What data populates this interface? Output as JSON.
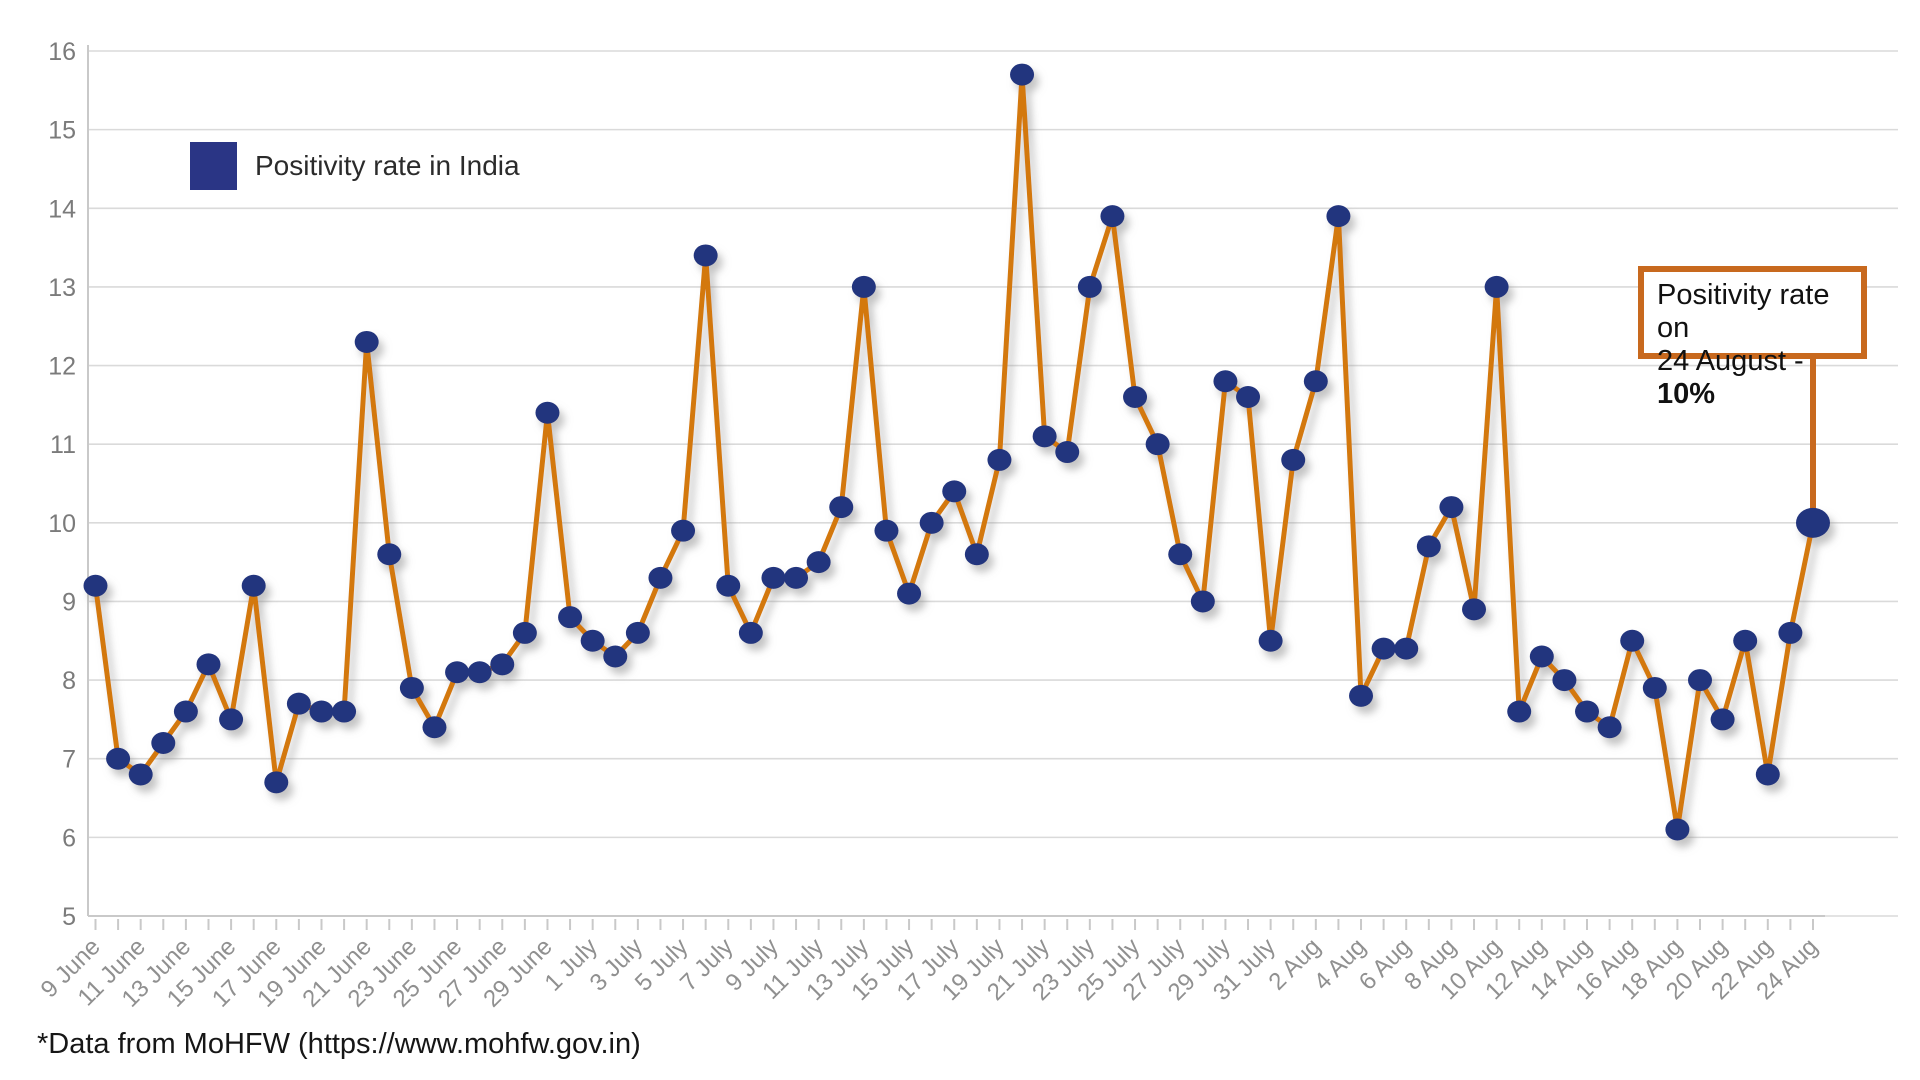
{
  "legend": {
    "label": "Positivity rate in India",
    "swatch_color": "#2A3585"
  },
  "annotation": {
    "line1": "Positivity rate on",
    "line2_prefix": "24 August - ",
    "line2_value": "10%"
  },
  "footer": {
    "note": "*Data from MoHFW (https://www.mohfw.gov.in)"
  },
  "chart_data": {
    "type": "line",
    "title": "",
    "xlabel": "",
    "ylabel": "",
    "ylim": [
      5,
      16
    ],
    "y_ticks": [
      5,
      6,
      7,
      8,
      9,
      10,
      11,
      12,
      13,
      14,
      15,
      16
    ],
    "grid": "horizontal",
    "legend_position": "top-left",
    "line_color": "#D3780E",
    "marker_color": "#24357E",
    "annotation_border_color": "#C8691E",
    "series_name": "Positivity rate in India",
    "x": [
      "9 June",
      "10 June",
      "11 June",
      "12 June",
      "13 June",
      "14 June",
      "15 June",
      "16 June",
      "17 June",
      "18 June",
      "19 June",
      "20 June",
      "21 June",
      "22 June",
      "23 June",
      "24 June",
      "25 June",
      "26 June",
      "27 June",
      "28 June",
      "29 June",
      "30 June",
      "1 July",
      "2 July",
      "3 July",
      "4 July",
      "5 July",
      "6 July",
      "7 July",
      "8 July",
      "9 July",
      "10 July",
      "11 July",
      "12 July",
      "13 July",
      "14 July",
      "15 July",
      "16 July",
      "17 July",
      "18 July",
      "19 July",
      "20 July",
      "21 July",
      "22 July",
      "23 July",
      "24 July",
      "25 July",
      "26 July",
      "27 July",
      "28 July",
      "29 July",
      "30 July",
      "31 July",
      "1 Aug",
      "2 Aug",
      "3 Aug",
      "4 Aug",
      "5 Aug",
      "6 Aug",
      "7 Aug",
      "8 Aug",
      "9 Aug",
      "10 Aug",
      "11 Aug",
      "12 Aug",
      "13 Aug",
      "14 Aug",
      "15 Aug",
      "16 Aug",
      "17 Aug",
      "18 Aug",
      "19 Aug",
      "20 Aug",
      "21 Aug",
      "22 Aug",
      "23 Aug",
      "24 Aug"
    ],
    "values": [
      9.2,
      7.0,
      6.8,
      7.2,
      7.6,
      8.2,
      7.5,
      9.2,
      6.7,
      7.7,
      7.6,
      7.6,
      12.3,
      9.6,
      7.9,
      7.4,
      8.1,
      8.1,
      8.2,
      8.6,
      11.4,
      8.8,
      8.5,
      8.3,
      8.6,
      9.3,
      9.9,
      13.4,
      9.2,
      8.6,
      9.3,
      9.3,
      9.5,
      10.2,
      13.0,
      9.9,
      9.1,
      10.0,
      10.4,
      9.6,
      10.8,
      15.7,
      11.1,
      10.9,
      13.0,
      13.9,
      11.6,
      11.0,
      9.6,
      9.0,
      11.8,
      11.6,
      8.5,
      10.8,
      11.8,
      13.9,
      7.8,
      8.4,
      8.4,
      9.7,
      10.2,
      8.9,
      13.0,
      7.6,
      8.3,
      8.0,
      7.6,
      7.4,
      8.5,
      7.9,
      6.1,
      8.0,
      7.5,
      8.5,
      6.8,
      8.6,
      10.0
    ],
    "x_tick_labels": [
      "9 June",
      "11 June",
      "13 June",
      "15 June",
      "17 June",
      "19 June",
      "21 June",
      "23 June",
      "25 June",
      "27 June",
      "29 June",
      "1 July",
      "3 July",
      "5 July",
      "7 July",
      "9 July",
      "11 July",
      "13 July",
      "15 July",
      "17 July",
      "19 July",
      "21 July",
      "23 July",
      "25 July",
      "27 July",
      "29 July",
      "31 July",
      "2 Aug",
      "4 Aug",
      "6 Aug",
      "8 Aug",
      "10 Aug",
      "12 Aug",
      "14 Aug",
      "16 Aug",
      "18 Aug",
      "20 Aug",
      "22 Aug",
      "24 Aug"
    ],
    "annotation_target": {
      "date": "24 Aug",
      "value": 10.0
    },
    "highlight_last_point": true
  }
}
